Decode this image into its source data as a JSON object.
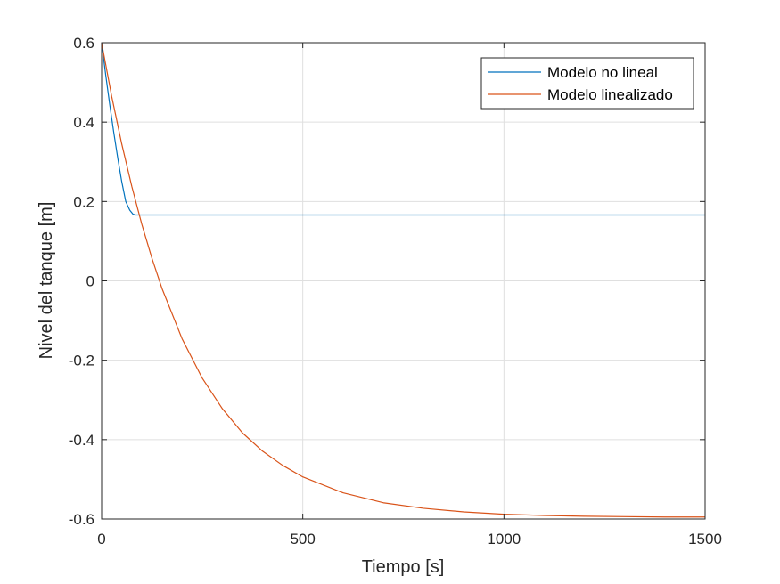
{
  "chart_data": {
    "type": "line",
    "title": "",
    "xlabel": "Tiempo [s]",
    "ylabel": "Nivel del tanque [m]",
    "xlim": [
      0,
      1500
    ],
    "ylim": [
      -0.6,
      0.6
    ],
    "xticks": [
      0,
      500,
      1000,
      1500
    ],
    "xtick_labels": [
      "0",
      "500",
      "1000",
      "1500"
    ],
    "yticks": [
      -0.6,
      -0.4,
      -0.2,
      0,
      0.2,
      0.4,
      0.6
    ],
    "ytick_labels": [
      "-0.6",
      "-0.4",
      "-0.2",
      "0",
      "0.2",
      "0.4",
      "0.6"
    ],
    "grid": true,
    "legend_position": "top-right",
    "series": [
      {
        "name": "Modelo no lineal",
        "color": "#0072bd",
        "x": [
          0,
          10,
          20,
          30,
          40,
          50,
          60,
          70,
          78,
          85,
          100,
          200,
          300,
          400,
          500,
          600,
          700,
          800,
          900,
          1000,
          1100,
          1200,
          1300,
          1400,
          1500
        ],
        "y": [
          0.6,
          0.52,
          0.445,
          0.375,
          0.31,
          0.25,
          0.2,
          0.178,
          0.168,
          0.166,
          0.166,
          0.166,
          0.166,
          0.166,
          0.166,
          0.166,
          0.166,
          0.166,
          0.166,
          0.166,
          0.166,
          0.166,
          0.166,
          0.166,
          0.166
        ]
      },
      {
        "name": "Modelo linealizado",
        "color": "#d95319",
        "x": [
          0,
          25,
          50,
          75,
          100,
          125,
          150,
          200,
          250,
          300,
          350,
          400,
          450,
          500,
          600,
          700,
          800,
          900,
          1000,
          1100,
          1200,
          1300,
          1400,
          1500
        ],
        "y": [
          0.6,
          0.465,
          0.345,
          0.238,
          0.142,
          0.057,
          -0.019,
          -0.146,
          -0.245,
          -0.322,
          -0.383,
          -0.429,
          -0.465,
          -0.494,
          -0.534,
          -0.559,
          -0.573,
          -0.582,
          -0.588,
          -0.591,
          -0.593,
          -0.594,
          -0.595,
          -0.595
        ]
      }
    ]
  }
}
